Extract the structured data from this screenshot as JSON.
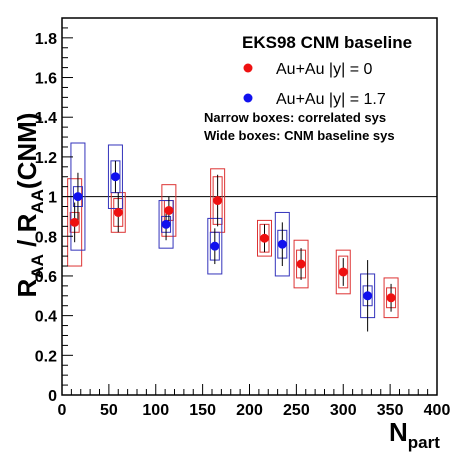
{
  "chart_data": {
    "type": "scatter",
    "title": "",
    "xlabel": {
      "main": "N",
      "sub": "part"
    },
    "ylabel": {
      "r1": "R",
      "s1": "AA",
      "mid": " / R",
      "s2": "AA",
      "end": "(CNM)"
    },
    "xlim": [
      0,
      400
    ],
    "ylim": [
      0,
      1.9
    ],
    "x_ticks": [
      0,
      50,
      100,
      150,
      200,
      250,
      300,
      350,
      400
    ],
    "y_ticks": [
      0,
      0.2,
      0.4,
      0.6,
      0.8,
      1,
      1.2,
      1.4,
      1.6,
      1.8
    ],
    "x_tick_labels": [
      "0",
      "50",
      "100",
      "150",
      "200",
      "250",
      "300",
      "350",
      "400"
    ],
    "y_tick_labels": [
      "0",
      "0.2",
      "0.4",
      "0.6",
      "0.8",
      "1",
      "1.2",
      "1.4",
      "1.6",
      "1.8"
    ],
    "reference_line": 1,
    "legend": {
      "header": "EKS98 CNM baseline",
      "placement": "top-right",
      "notes": [
        "Narrow boxes: correlated sys",
        "Wide boxes: CNM baseline sys"
      ]
    },
    "series": [
      {
        "name": "Au+Au |y| = 0",
        "color": "#ee1111",
        "box_color": "#dd3333",
        "points": [
          {
            "x": 13.5,
            "y": 0.87,
            "stat": 0.1,
            "sys_corr": 0.05,
            "sys_cnm": 0.22
          },
          {
            "x": 60,
            "y": 0.92,
            "stat": 0.1,
            "sys_corr": 0.07,
            "sys_cnm": 0.1
          },
          {
            "x": 114,
            "y": 0.93,
            "stat": 0.07,
            "sys_corr": 0.05,
            "sys_cnm": 0.13
          },
          {
            "x": 166,
            "y": 0.98,
            "stat": 0.13,
            "sys_corr": 0.12,
            "sys_cnm": 0.16
          },
          {
            "x": 216,
            "y": 0.79,
            "stat": 0.07,
            "sys_corr": 0.07,
            "sys_cnm": 0.09
          },
          {
            "x": 255,
            "y": 0.66,
            "stat": 0.08,
            "sys_corr": 0.07,
            "sys_cnm": 0.12
          },
          {
            "x": 300,
            "y": 0.62,
            "stat": 0.07,
            "sys_corr": 0.08,
            "sys_cnm": 0.11
          },
          {
            "x": 351,
            "y": 0.49,
            "stat": 0.07,
            "sys_corr": 0.05,
            "sys_cnm": 0.1
          }
        ]
      },
      {
        "name": "Au+Au |y| = 1.7",
        "color": "#1111ee",
        "box_color": "#3333bb",
        "points": [
          {
            "x": 17,
            "y": 1.0,
            "stat": 0.12,
            "sys_corr": 0.05,
            "sys_cnm": 0.27
          },
          {
            "x": 57,
            "y": 1.1,
            "stat": 0.08,
            "sys_corr": 0.08,
            "sys_cnm": 0.16
          },
          {
            "x": 111,
            "y": 0.86,
            "stat": 0.08,
            "sys_corr": 0.04,
            "sys_cnm": 0.12
          },
          {
            "x": 163,
            "y": 0.75,
            "stat": 0.09,
            "sys_corr": 0.07,
            "sys_cnm": 0.14
          },
          {
            "x": 235,
            "y": 0.76,
            "stat": 0.11,
            "sys_corr": 0.07,
            "sys_cnm": 0.16
          },
          {
            "x": 326,
            "y": 0.5,
            "stat": 0.18,
            "sys_corr": 0.05,
            "sys_cnm": 0.11
          }
        ]
      }
    ]
  }
}
